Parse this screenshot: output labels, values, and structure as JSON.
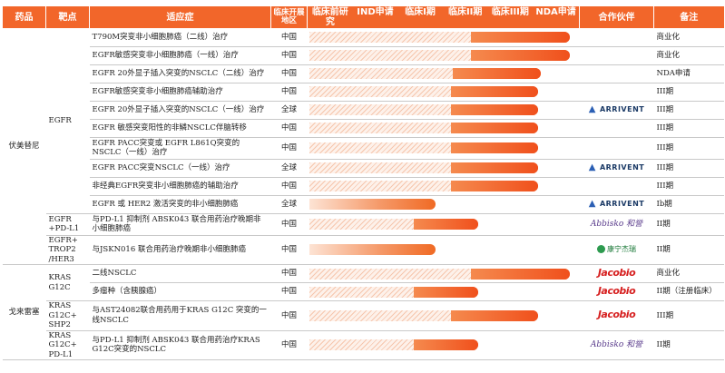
{
  "headers": {
    "drug": "药品",
    "target": "靶点",
    "indication": "适应症",
    "region": "临床开展地区",
    "stages": [
      "临床前研究",
      "IND申请",
      "临床I期",
      "临床II期",
      "临床III期",
      "NDA申请"
    ],
    "partner": "合作伙伴",
    "note": "备注"
  },
  "logos": {
    "arrivent": "ARRIVENT",
    "allist_abbisko": "Abbisko 和誉",
    "jacobio": "Jacobio",
    "kangning": "康宁杰瑞"
  },
  "colors": {
    "header": "#f2662a",
    "bar_end": "#f0501c",
    "bar_start": "#fde3d4"
  },
  "groups": [
    {
      "drug": "伏美替尼",
      "targets": [
        {
          "target": "EGFR",
          "rows": [
            {
              "indication": "T790M突变非小细胞肺癌（二线）治疗",
              "region": "中国",
              "progress": 0.97,
              "partner": "",
              "note": "商业化"
            },
            {
              "indication": "EGFR敏感突变非小细胞肺癌（一线）治疗",
              "region": "中国",
              "progress": 0.97,
              "partner": "",
              "note": "商业化"
            },
            {
              "indication": "EGFR 20外显子插入突变的NSCLC（二线）治疗",
              "region": "中国",
              "progress": 0.86,
              "partner": "",
              "note": "NDA申请"
            },
            {
              "indication": "EGFR敏感突变非小细胞肺癌辅助治疗",
              "region": "中国",
              "progress": 0.85,
              "partner": "",
              "note": "III期"
            },
            {
              "indication": "EGFR 20外显子插入突变的NSCLC（一线）治疗",
              "region": "全球",
              "progress": 0.85,
              "partner": "arrivent",
              "note": "III期"
            },
            {
              "indication": "EGFR 敏感突变阳性的非鳞NSCLC伴脑转移",
              "region": "中国",
              "progress": 0.85,
              "partner": "",
              "note": "III期"
            },
            {
              "indication": "EGFR PACC突变或 EGFR L861Q突变的NSCLC（一线）治疗",
              "region": "中国",
              "progress": 0.85,
              "partner": "",
              "note": "III期"
            },
            {
              "indication": "EGFR PACC突变NSCLC（一线）治疗",
              "region": "全球",
              "progress": 0.85,
              "partner": "arrivent",
              "note": "III期"
            },
            {
              "indication": "非经典EGFR突变非小细胞肺癌的辅助治疗",
              "region": "中国",
              "progress": 0.85,
              "partner": "",
              "note": "III期"
            },
            {
              "indication": "EGFR 或 HER2 激活突变的非小细胞肺癌",
              "region": "全球",
              "progress": 0.47,
              "partner": "arrivent",
              "note": "Ib期"
            }
          ]
        },
        {
          "target": "EGFR +PD-L1",
          "rows": [
            {
              "indication": "与PD-L1 抑制剂 ABSK043 联合用药治疗晚期非小细胞肺癌",
              "region": "中国",
              "progress": 0.63,
              "partner": "allist_abbisko",
              "note": "II期"
            }
          ]
        },
        {
          "target": "EGFR+ TROP2 /HER3",
          "rows": [
            {
              "indication": "与JSKN016 联合用药治疗晚期非小细胞肺癌",
              "region": "中国",
              "progress": 0.47,
              "partner": "kangning",
              "note": "II期"
            }
          ]
        }
      ]
    },
    {
      "drug": "戈来雷塞",
      "targets": [
        {
          "target": "KRAS G12C",
          "rows": [
            {
              "indication": "二线NSCLC",
              "region": "中国",
              "progress": 0.97,
              "partner": "jacobio",
              "note": "商业化"
            },
            {
              "indication": "多瘤种（含胰腺癌）",
              "region": "中国",
              "progress": 0.63,
              "partner": "jacobio",
              "note": "II期（注册临床）"
            }
          ]
        },
        {
          "target": "KRAS G12C+ SHP2",
          "rows": [
            {
              "indication": "与AST24082联合用药用于KRAS G12C 突变的一线NSCLC",
              "region": "中国",
              "progress": 0.85,
              "partner": "jacobio",
              "note": "III期"
            }
          ]
        },
        {
          "target": "KRAS G12C+ PD-L1",
          "rows": [
            {
              "indication": "与PD-L1 抑制剂 ABSK043 联合用药治疗KRAS G12C突变的NSCLC",
              "region": "中国",
              "progress": 0.63,
              "partner": "allist_abbisko",
              "note": "II期"
            }
          ]
        }
      ]
    }
  ]
}
